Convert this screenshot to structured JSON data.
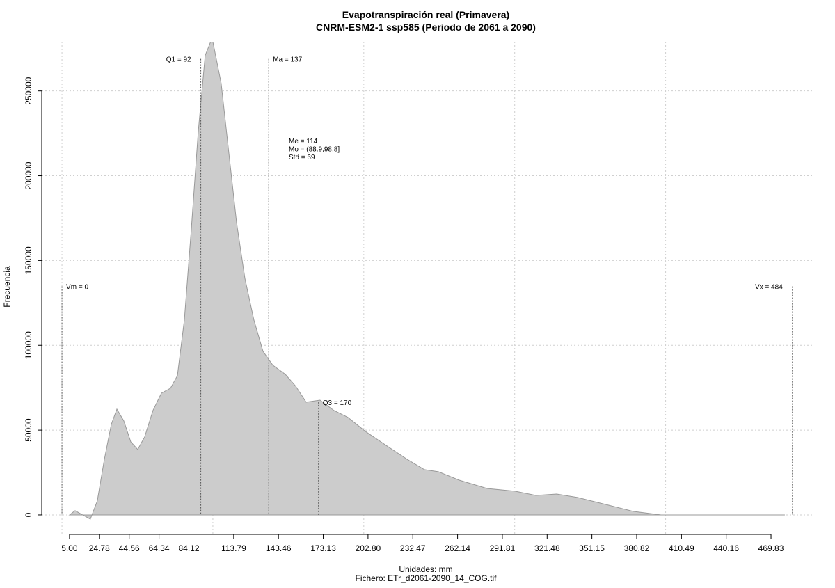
{
  "chart_data": {
    "type": "area",
    "title": "Evapotranspiración real (Primavera)",
    "subtitle": "CNRM-ESM2-1 ssp585 (Periodo de 2061 a 2090)",
    "x_label": "Unidades: mm",
    "caption": "Fichero: ETr_d2061-2090_14_COG.tif",
    "y_label": "Frecuencia",
    "color": "#cccccc",
    "line_color": "#999999",
    "x": [
      5,
      8.7,
      18.8,
      23.4,
      28.1,
      32.7,
      36.4,
      41,
      45.6,
      50.2,
      54.8,
      60.3,
      65.9,
      71.9,
      76.5,
      81.1,
      85.7,
      90.3,
      94.9,
      99.5,
      105.5,
      111.1,
      115.7,
      121.2,
      127.2,
      133.2,
      139.7,
      148,
      154.9,
      161.8,
      171,
      180.2,
      189.5,
      201,
      214.8,
      228.7,
      240.2,
      249.4,
      263.2,
      281.7,
      300.1,
      314,
      327.8,
      341.6,
      360.1,
      378.5,
      397,
      420,
      479
    ],
    "values": [
      0,
      2500,
      -2500,
      8200,
      32800,
      53400,
      62400,
      55400,
      43100,
      38600,
      46000,
      61600,
      71800,
      74700,
      82100,
      114900,
      168300,
      225800,
      270900,
      281200,
      254500,
      209400,
      172400,
      139600,
      114900,
      96500,
      88300,
      82900,
      75900,
      66500,
      67700,
      61600,
      57500,
      49300,
      41000,
      32800,
      26700,
      25500,
      20500,
      15600,
      14000,
      11500,
      12300,
      10300,
      6200,
      2100,
      0,
      0,
      0
    ],
    "xlim": [
      -13.4,
      498.4
    ],
    "ylim": [
      -11500,
      279000
    ],
    "xticks": [
      {
        "value": 5,
        "label": "5.00"
      },
      24.78,
      44.56,
      64.34,
      84.12,
      113.79,
      143.46,
      173.13,
      {
        "value": 202.8,
        "label": "202.80"
      },
      232.47,
      262.14,
      291.81,
      321.48,
      351.15,
      380.82,
      410.49,
      440.16,
      469.83
    ],
    "yticks": [
      0,
      50000,
      100000,
      150000,
      200000,
      250000
    ],
    "xgrid": [
      0,
      100,
      200,
      300,
      400
    ],
    "grid": true,
    "annotations": [
      {
        "label": "Vm = 0",
        "x": 0,
        "y": 134700
      },
      {
        "label": "Q1 = 92",
        "x": 92,
        "y": 268900
      },
      {
        "label": "Ma = 137",
        "x": 137,
        "y": 268900
      },
      {
        "label": "Q3 = 170",
        "x": 170,
        "y": 66500
      },
      {
        "label": "Vx = 484",
        "x": 484,
        "y": 134700
      }
    ],
    "stats": [
      "Me = 114",
      "Mo = (88.9,98.8]",
      "Std = 69"
    ]
  }
}
